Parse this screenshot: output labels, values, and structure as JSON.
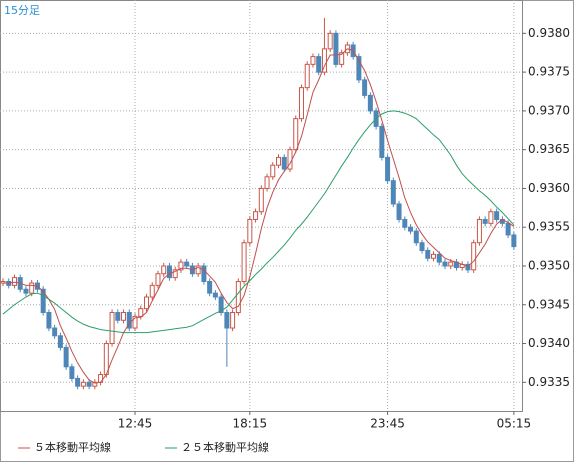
{
  "chart_data": {
    "type": "candlestick",
    "title": "15分足",
    "categories": [
      null,
      null,
      null,
      null,
      null,
      null,
      null,
      null,
      null,
      null,
      null,
      null,
      null,
      null,
      null,
      null,
      null,
      null,
      null,
      null,
      null,
      null,
      null,
      "12:45",
      null,
      null,
      null,
      null,
      null,
      null,
      null,
      null,
      null,
      null,
      null,
      null,
      null,
      null,
      null,
      null,
      null,
      null,
      null,
      "18:15",
      null,
      null,
      null,
      null,
      null,
      null,
      null,
      null,
      null,
      null,
      null,
      null,
      null,
      null,
      null,
      null,
      null,
      null,
      null,
      null,
      null,
      null,
      null,
      "23:45",
      null,
      null,
      null,
      null,
      null,
      null,
      null,
      null,
      null,
      null,
      null,
      null,
      null,
      null,
      null,
      null,
      null,
      null,
      null,
      null,
      null,
      "05:15"
    ],
    "open": [
      0.93478,
      0.9348,
      0.93475,
      0.93485,
      0.9347,
      0.93465,
      0.93478,
      0.9347,
      0.9344,
      0.9342,
      0.9341,
      0.93395,
      0.9337,
      0.93355,
      0.93345,
      0.9335,
      0.93345,
      0.9335,
      0.9336,
      0.934,
      0.9344,
      0.9343,
      0.9344,
      0.9342,
      0.93435,
      0.93445,
      0.9346,
      0.93475,
      0.9349,
      0.935,
      0.93485,
      0.93495,
      0.93505,
      0.935,
      0.9349,
      0.935,
      0.9348,
      0.93465,
      0.9346,
      0.9344,
      0.9342,
      0.9344,
      0.9348,
      0.9353,
      0.9356,
      0.9357,
      0.936,
      0.93615,
      0.9363,
      0.9364,
      0.93625,
      0.9365,
      0.9369,
      0.9373,
      0.9376,
      0.9377,
      0.9375,
      0.9378,
      0.938,
      0.9376,
      0.93775,
      0.93785,
      0.9377,
      0.9374,
      0.9372,
      0.937,
      0.9368,
      0.9364,
      0.9361,
      0.9358,
      0.9356,
      0.9355,
      0.93545,
      0.9353,
      0.9352,
      0.9351,
      0.93515,
      0.93505,
      0.935,
      0.93505,
      0.93498,
      0.93502,
      0.93495,
      0.9353,
      0.9356,
      0.93555,
      0.9357,
      0.9356,
      0.93555,
      0.9354
    ],
    "high": [
      0.93484,
      0.93484,
      0.93489,
      0.93489,
      0.93474,
      0.93482,
      0.93482,
      0.93474,
      0.93444,
      0.93424,
      0.93414,
      0.93399,
      0.93374,
      0.93359,
      0.93354,
      0.93354,
      0.93354,
      0.93364,
      0.93404,
      0.93444,
      0.93444,
      0.93444,
      0.93444,
      0.93439,
      0.93449,
      0.93464,
      0.93479,
      0.93494,
      0.93504,
      0.93504,
      0.93499,
      0.93509,
      0.93509,
      0.93504,
      0.93504,
      0.93504,
      0.93484,
      0.93469,
      0.93464,
      0.93444,
      0.93444,
      0.93484,
      0.93534,
      0.93564,
      0.93574,
      0.93604,
      0.93619,
      0.93634,
      0.93644,
      0.93644,
      0.93654,
      0.93694,
      0.93734,
      0.93764,
      0.93774,
      0.93774,
      0.9382,
      0.93804,
      0.93804,
      0.93779,
      0.93789,
      0.93789,
      0.93774,
      0.93744,
      0.93724,
      0.93704,
      0.93684,
      0.93644,
      0.93614,
      0.93584,
      0.93564,
      0.93554,
      0.93549,
      0.93534,
      0.93524,
      0.93519,
      0.93519,
      0.93509,
      0.93509,
      0.93509,
      0.93506,
      0.93506,
      0.93534,
      0.93564,
      0.93564,
      0.93574,
      0.93574,
      0.93564,
      0.93559,
      0.93544
    ],
    "low": [
      0.93474,
      0.93471,
      0.93471,
      0.93466,
      0.93461,
      0.93461,
      0.93466,
      0.93436,
      0.93416,
      0.93406,
      0.93391,
      0.93366,
      0.93351,
      0.93341,
      0.93341,
      0.93341,
      0.93341,
      0.93346,
      0.93356,
      0.93396,
      0.93426,
      0.93426,
      0.93416,
      0.93416,
      0.93431,
      0.93441,
      0.93456,
      0.93471,
      0.93486,
      0.93481,
      0.93481,
      0.93491,
      0.93496,
      0.93486,
      0.93486,
      0.93476,
      0.93461,
      0.93456,
      0.93436,
      0.9337,
      0.93416,
      0.93436,
      0.93476,
      0.93526,
      0.93556,
      0.93566,
      0.93596,
      0.93611,
      0.93626,
      0.93621,
      0.93621,
      0.93646,
      0.93686,
      0.93726,
      0.93756,
      0.93746,
      0.93746,
      0.93776,
      0.93756,
      0.93756,
      0.93771,
      0.93766,
      0.93736,
      0.93716,
      0.93696,
      0.93676,
      0.93636,
      0.93606,
      0.93576,
      0.93556,
      0.93546,
      0.93541,
      0.93526,
      0.93516,
      0.93506,
      0.93506,
      0.93501,
      0.93496,
      0.93496,
      0.93494,
      0.93494,
      0.93491,
      0.93491,
      0.93526,
      0.93551,
      0.93551,
      0.93556,
      0.93551,
      0.93536,
      0.93521
    ],
    "close": [
      0.9348,
      0.93475,
      0.93485,
      0.9347,
      0.93465,
      0.93478,
      0.9347,
      0.9344,
      0.9342,
      0.9341,
      0.93395,
      0.9337,
      0.93355,
      0.93345,
      0.9335,
      0.93345,
      0.9335,
      0.9336,
      0.934,
      0.9344,
      0.9343,
      0.9344,
      0.9342,
      0.93435,
      0.93445,
      0.9346,
      0.93475,
      0.9349,
      0.935,
      0.93485,
      0.93495,
      0.93505,
      0.935,
      0.9349,
      0.935,
      0.9348,
      0.93465,
      0.9346,
      0.9344,
      0.9342,
      0.9344,
      0.9348,
      0.9353,
      0.9356,
      0.9357,
      0.936,
      0.93615,
      0.9363,
      0.9364,
      0.93625,
      0.9365,
      0.9369,
      0.9373,
      0.9376,
      0.9377,
      0.9375,
      0.9378,
      0.938,
      0.9376,
      0.93775,
      0.93785,
      0.9377,
      0.9374,
      0.9372,
      0.937,
      0.9368,
      0.9364,
      0.9361,
      0.9358,
      0.9356,
      0.9355,
      0.93545,
      0.9353,
      0.9352,
      0.9351,
      0.93515,
      0.93505,
      0.935,
      0.93505,
      0.93498,
      0.93502,
      0.93495,
      0.9353,
      0.9356,
      0.93555,
      0.9357,
      0.9356,
      0.93555,
      0.9354,
      0.93525
    ],
    "up_color": "#c8574a",
    "down_color": "#4f86b8",
    "series": [
      {
        "name": "５本移動平均線",
        "color": "#c0504d",
        "values": [
          0.93478,
          0.93478,
          0.93479,
          0.93478,
          0.93475,
          0.93475,
          0.93474,
          0.93467,
          0.93457,
          0.93444,
          0.93423,
          0.93407,
          0.9339,
          0.93375,
          0.93363,
          0.93353,
          0.93349,
          0.9335,
          0.9336,
          0.93379,
          0.93396,
          0.93414,
          0.93426,
          0.93433,
          0.93434,
          0.9344,
          0.93455,
          0.93469,
          0.93484,
          0.9349,
          0.93493,
          0.93497,
          0.93497,
          0.93495,
          0.93498,
          0.93495,
          0.93487,
          0.93479,
          0.93465,
          0.93453,
          0.93445,
          0.93448,
          0.93462,
          0.93486,
          0.93516,
          0.93548,
          0.93575,
          0.93595,
          0.93611,
          0.93622,
          0.93632,
          0.93647,
          0.93667,
          0.93695,
          0.93724,
          0.9374,
          0.93758,
          0.93772,
          0.93772,
          0.93773,
          0.9378,
          0.93778,
          0.93765,
          0.93752,
          0.93734,
          0.93712,
          0.93688,
          0.93662,
          0.93638,
          0.93614,
          0.93588,
          0.93569,
          0.93553,
          0.93541,
          0.93531,
          0.93524,
          0.93517,
          0.9351,
          0.93507,
          0.93505,
          0.93502,
          0.935,
          0.93506,
          0.93517,
          0.93528,
          0.93542,
          0.93554,
          0.9356,
          0.93556,
          0.93551
        ]
      },
      {
        "name": "２５本移動平均線",
        "color": "#2e9e6a",
        "values": [
          0.93438,
          0.93444,
          0.9345,
          0.93455,
          0.9346,
          0.93464,
          0.93465,
          0.93462,
          0.93457,
          0.93452,
          0.93446,
          0.9344,
          0.93434,
          0.93429,
          0.93425,
          0.93422,
          0.9342,
          0.93418,
          0.93417,
          0.93416,
          0.93415,
          0.93414,
          0.93414,
          0.93414,
          0.93414,
          0.93414,
          0.93415,
          0.93416,
          0.93417,
          0.93418,
          0.93419,
          0.9342,
          0.93421,
          0.93423,
          0.93427,
          0.93431,
          0.93435,
          0.93439,
          0.93442,
          0.93447,
          0.93456,
          0.93465,
          0.93474,
          0.93481,
          0.93489,
          0.93496,
          0.93504,
          0.93511,
          0.93519,
          0.93527,
          0.93536,
          0.93546,
          0.93554,
          0.93563,
          0.93573,
          0.93583,
          0.93593,
          0.93605,
          0.93617,
          0.93629,
          0.9364,
          0.93652,
          0.93663,
          0.93673,
          0.93682,
          0.9369,
          0.93696,
          0.93699,
          0.937,
          0.93699,
          0.93697,
          0.93694,
          0.9369,
          0.93683,
          0.93676,
          0.93669,
          0.93663,
          0.93653,
          0.93643,
          0.9363,
          0.93619,
          0.93611,
          0.93604,
          0.93597,
          0.93591,
          0.93584,
          0.93576,
          0.93569,
          0.93561,
          0.93553
        ]
      }
    ],
    "ylim": [
      0.93313,
      0.93843
    ],
    "yticks": [
      0.9335,
      {
        "value": 0.934,
        "label": "0.9340"
      },
      0.9345,
      {
        "value": 0.935,
        "label": "0.9350"
      },
      0.9355,
      {
        "value": 0.936,
        "label": "0.9360"
      },
      0.9365,
      {
        "value": 0.937,
        "label": "0.9370"
      },
      0.9375,
      {
        "value": 0.938,
        "label": "0.9380"
      }
    ],
    "grid": true
  }
}
